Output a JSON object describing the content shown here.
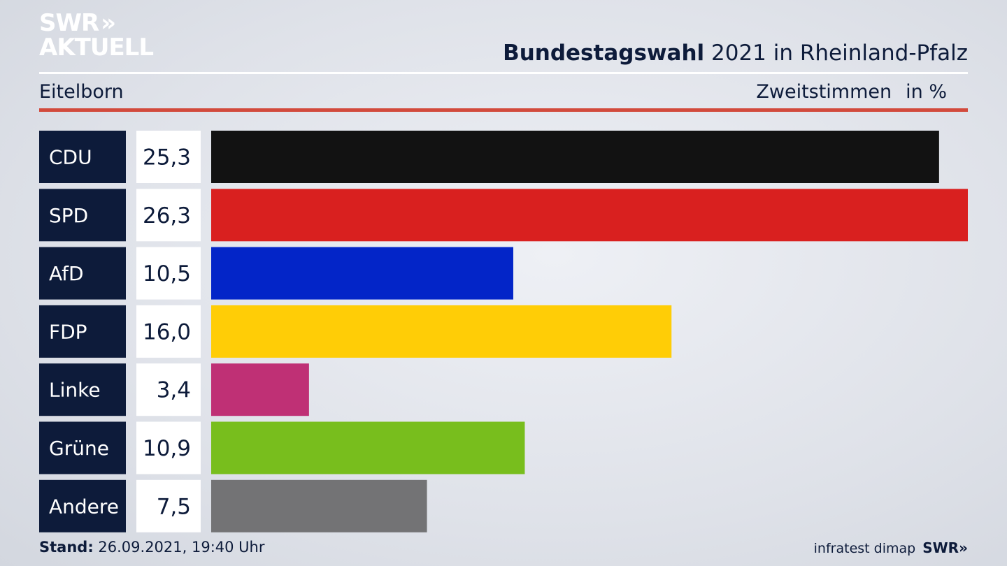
{
  "header": {
    "logo_line1": "SWR",
    "logo_chevrons": "»",
    "logo_line2": "AKTUELL",
    "title_bold": "Bundestagswahl",
    "title_rest": " 2021 in Rheinland-Pfalz",
    "location": "Eitelborn",
    "vote_type": "Zweitstimmen",
    "unit": "in %"
  },
  "chart_data": {
    "type": "bar",
    "orientation": "horizontal",
    "categories": [
      "CDU",
      "SPD",
      "AfD",
      "FDP",
      "Linke",
      "Grüne",
      "Andere"
    ],
    "values": [
      25.3,
      26.3,
      10.5,
      16.0,
      3.4,
      10.9,
      7.5
    ],
    "value_labels": [
      "25,3",
      "26,3",
      "10,5",
      "16,0",
      "3,4",
      "10,9",
      "7,5"
    ],
    "colors": [
      "#121212",
      "#d9201f",
      "#0325c8",
      "#ffcd06",
      "#bf3075",
      "#78be1d",
      "#737375"
    ],
    "xlim": [
      0,
      26.3
    ],
    "grid": false,
    "legend": "none"
  },
  "footer": {
    "stand_label": "Stand:",
    "stand_value": " 26.09.2021, 19:40 Uhr",
    "source": "infratest dimap",
    "brand": "SWR»"
  }
}
